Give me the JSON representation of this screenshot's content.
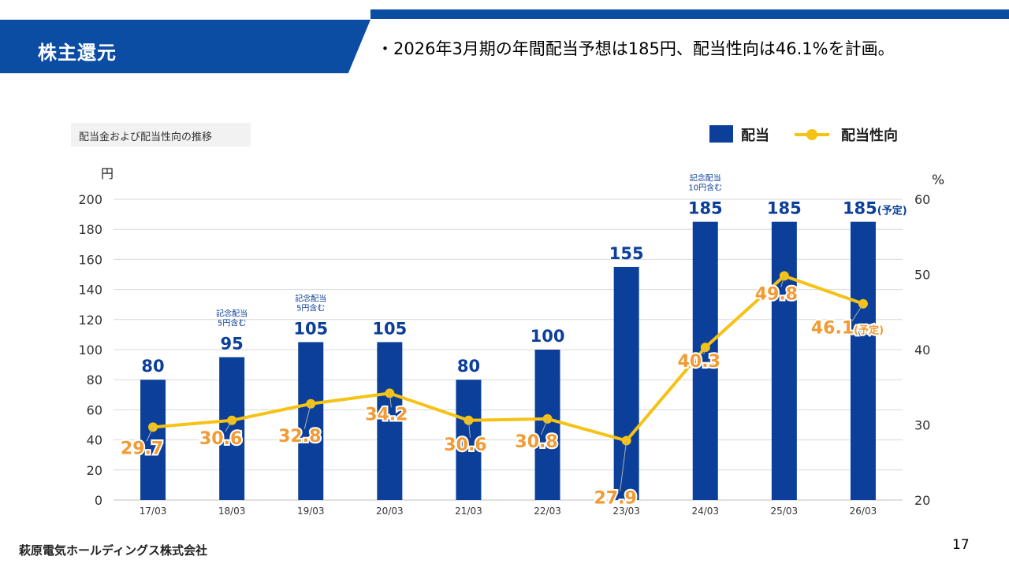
{
  "header": {
    "title": "株主還元",
    "headline": "・2026年3月期の年間配当予想は185円、配当性向は46.1%を計画。"
  },
  "chart_data": {
    "type": "bar",
    "title": "配当金および配当性向の推移",
    "categories": [
      "17/03",
      "18/03",
      "19/03",
      "20/03",
      "21/03",
      "22/03",
      "23/03",
      "24/03",
      "25/03",
      "26/03"
    ],
    "series": [
      {
        "name": "配当",
        "axis": "left",
        "type": "bar",
        "values": [
          80,
          95,
          105,
          105,
          80,
          100,
          155,
          185,
          185,
          185
        ],
        "labels": [
          "80",
          "95",
          "105",
          "105",
          "80",
          "100",
          "155",
          "185",
          "185",
          "185"
        ]
      },
      {
        "name": "配当性向",
        "axis": "right",
        "type": "line",
        "values": [
          29.7,
          30.6,
          32.8,
          34.2,
          30.6,
          30.8,
          27.9,
          40.3,
          49.8,
          46.1
        ],
        "labels": [
          "29.7",
          "30.6",
          "32.8",
          "34.2",
          "30.6",
          "30.8",
          "27.9",
          "40.3",
          "49.8",
          "46.1"
        ]
      }
    ],
    "y_left": {
      "label": "円",
      "ylim": [
        0,
        200
      ],
      "ticks": [
        "0",
        "20",
        "40",
        "60",
        "80",
        "100",
        "120",
        "140",
        "160",
        "180",
        "200"
      ]
    },
    "y_right": {
      "label": "%",
      "ylim": [
        20,
        60
      ],
      "ticks": [
        "20",
        "30",
        "40",
        "50",
        "60"
      ]
    },
    "annotations": [
      {
        "index": 1,
        "line1": "記念配当",
        "line2": "5円含む"
      },
      {
        "index": 2,
        "line1": "記念配当",
        "line2": "5円含む"
      },
      {
        "index": 7,
        "line1": "記念配当",
        "line2": "10円含む"
      }
    ],
    "forecast_suffix": "(予定)",
    "legend_position": "top-right",
    "grid": true,
    "colors": {
      "bar": "#0B3F9A",
      "line": "#F5C215",
      "line_label": "#F29A33",
      "bar_label": "#0B3F9A",
      "grid": "#D9D9D9"
    }
  },
  "footer": {
    "company": "萩原電気ホールディングス株式会社",
    "page_number": "17"
  }
}
